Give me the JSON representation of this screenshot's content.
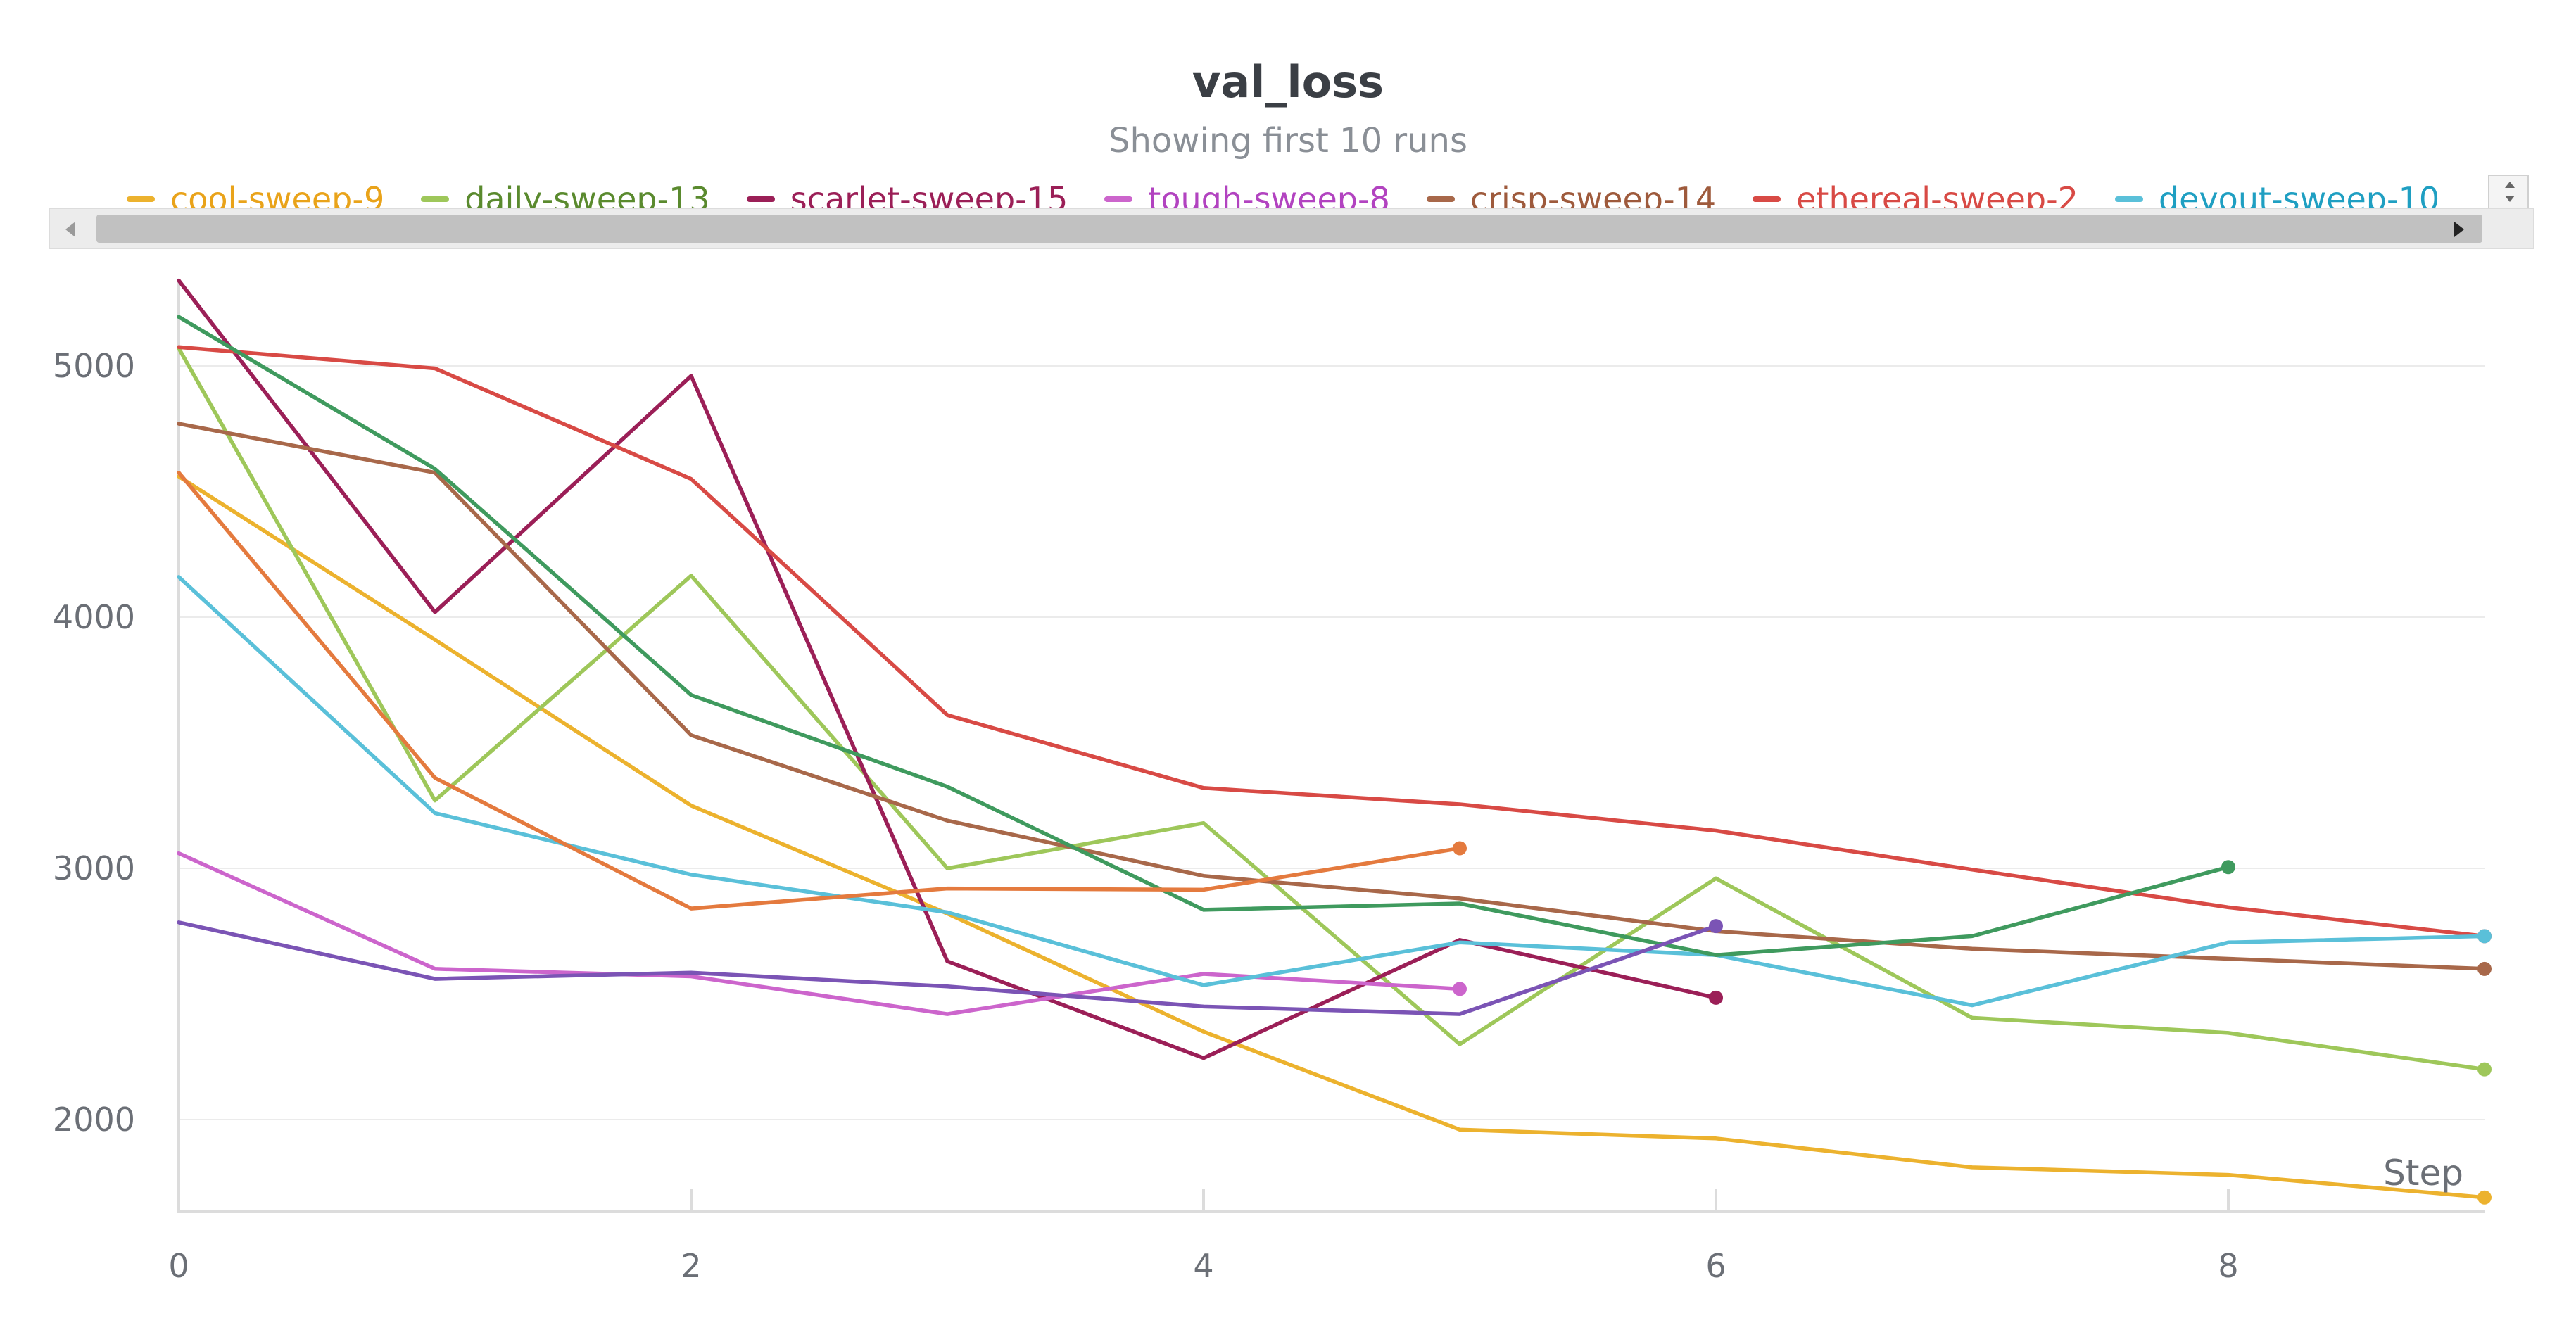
{
  "chart_data": {
    "type": "line",
    "title": "val_loss",
    "subtitle": "Showing first 10 runs",
    "xlabel": "Step",
    "ylabel": "",
    "xlim": [
      0,
      9
    ],
    "ylim": [
      1650,
      5350
    ],
    "x_ticks": [
      0,
      2,
      4,
      6,
      8
    ],
    "y_ticks": [
      2000,
      3000,
      4000,
      5000
    ],
    "grid": true,
    "legend_position": "top",
    "series": [
      {
        "name": "cool-sweep-9",
        "legend_color": "#e9a31a",
        "color": "#ecb22e",
        "x": [
          0,
          1,
          2,
          3,
          4,
          5,
          6,
          7,
          8,
          9
        ],
        "values": [
          4560,
          3910,
          3250,
          2820,
          2350,
          1960,
          1925,
          1810,
          1780,
          1690
        ],
        "end_marker": true
      },
      {
        "name": "daily-sweep-13",
        "legend_color": "#5a8a2e",
        "color": "#9ec75a",
        "x": [
          0,
          1,
          2,
          3,
          4,
          5,
          6,
          7,
          8,
          9
        ],
        "values": [
          5070,
          3270,
          4165,
          3000,
          3180,
          2300,
          2960,
          2405,
          2345,
          2200
        ],
        "end_marker": true
      },
      {
        "name": "scarlet-sweep-15",
        "legend_color": "#9b1f57",
        "color": "#9b1f57",
        "x": [
          0,
          1,
          2,
          3,
          4,
          5,
          6
        ],
        "values": [
          5340,
          4020,
          4960,
          2630,
          2245,
          2715,
          2485
        ],
        "end_marker": true
      },
      {
        "name": "tough-sweep-8",
        "legend_color": "#b243c0",
        "color": "#cc65cc",
        "x": [
          0,
          1,
          2,
          3,
          4,
          5
        ],
        "values": [
          3060,
          2600,
          2570,
          2420,
          2580,
          2520
        ],
        "end_marker": true
      },
      {
        "name": "crisp-sweep-14",
        "legend_color": "#9e5a3c",
        "color": "#a8684a",
        "x": [
          0,
          1,
          2,
          3,
          4,
          5,
          6,
          7,
          8,
          9
        ],
        "values": [
          4770,
          4575,
          3530,
          3190,
          2970,
          2880,
          2750,
          2680,
          2640,
          2600
        ],
        "end_marker": true
      },
      {
        "name": "ethereal-sweep-2",
        "legend_color": "#d84a45",
        "color": "#d84a45",
        "x": [
          0,
          1,
          2,
          3,
          4,
          5,
          6,
          7,
          8,
          9
        ],
        "values": [
          5075,
          4990,
          4550,
          3610,
          3320,
          3255,
          3150,
          2995,
          2845,
          2730
        ],
        "end_marker": true
      },
      {
        "name": "devout-sweep-10",
        "legend_color": "#1f9fc2",
        "color": "#5ac0d9",
        "x": [
          0,
          1,
          2,
          3,
          4,
          5,
          6,
          7,
          8,
          9
        ],
        "values": [
          4160,
          3220,
          2975,
          2825,
          2535,
          2705,
          2655,
          2455,
          2705,
          2730
        ],
        "end_marker": true
      },
      {
        "name": "",
        "color": "#3f9a5e",
        "x": [
          0,
          1,
          2,
          3,
          4,
          5,
          6,
          7,
          8
        ],
        "values": [
          5195,
          4590,
          3690,
          3325,
          2835,
          2860,
          2655,
          2730,
          3005
        ],
        "end_marker": true
      },
      {
        "name": "",
        "color": "#e47a3e",
        "x": [
          0,
          1,
          2,
          3,
          4,
          5
        ],
        "values": [
          4575,
          3360,
          2840,
          2920,
          2915,
          3080
        ],
        "end_marker": true
      },
      {
        "name": "",
        "color": "#7b54b5",
        "x": [
          0,
          1,
          2,
          3,
          4,
          5,
          6
        ],
        "values": [
          2785,
          2560,
          2585,
          2530,
          2450,
          2420,
          2770
        ],
        "end_marker": true
      }
    ]
  }
}
